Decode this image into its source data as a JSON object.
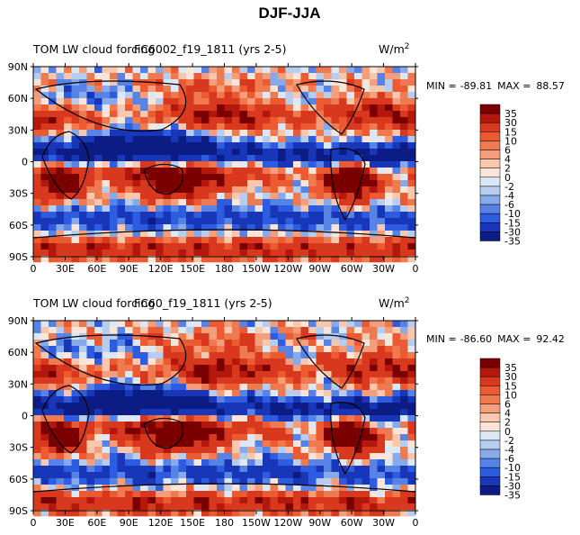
{
  "figure_title": "DJF-JJA",
  "chart_data": [
    {
      "type": "heatmap",
      "left_title": "TOM LW cloud forcing",
      "case_name": "FC6002_f19_1811 (yrs 2-5)",
      "units": "W/m",
      "units_sup": "2",
      "stats": {
        "min_label": "MIN =",
        "min": "-89.81",
        "max_label": "MAX =",
        "max": "88.57"
      },
      "y_ticks": [
        "90N",
        "60N",
        "30N",
        "0",
        "30S",
        "60S",
        "90S"
      ],
      "x_ticks": [
        "0",
        "30E",
        "60E",
        "90E",
        "120E",
        "150E",
        "180",
        "150W",
        "120W",
        "90W",
        "60W",
        "30W",
        "0"
      ],
      "contour_levels": [
        "35",
        "30",
        "15",
        "10",
        "6",
        "4",
        "2",
        "0",
        "-2",
        "-4",
        "-6",
        "-10",
        "-15",
        "-30",
        "-35"
      ],
      "pattern": "a"
    },
    {
      "type": "heatmap",
      "left_title": "TOM LW cloud forcing",
      "case_name": "FC60_f19_1811 (yrs 2-5)",
      "units": "W/m",
      "units_sup": "2",
      "stats": {
        "min_label": "MIN =",
        "min": "-86.60",
        "max_label": "MAX =",
        "max": "92.42"
      },
      "y_ticks": [
        "90N",
        "60N",
        "30N",
        "0",
        "30S",
        "60S",
        "90S"
      ],
      "x_ticks": [
        "0",
        "30E",
        "60E",
        "90E",
        "120E",
        "150E",
        "180",
        "150W",
        "120W",
        "90W",
        "60W",
        "30W",
        "0"
      ],
      "contour_levels": [
        "35",
        "30",
        "15",
        "10",
        "6",
        "4",
        "2",
        "0",
        "-2",
        "-4",
        "-6",
        "-10",
        "-15",
        "-30",
        "-35"
      ],
      "pattern": "b"
    }
  ],
  "colors": {
    "scale": [
      "#7a0000",
      "#b4180c",
      "#d8381e",
      "#ec5a32",
      "#f07a50",
      "#f59e7c",
      "#f9c7ae",
      "#fbe5d8",
      "#dde8f7",
      "#b6cdf0",
      "#86aaea",
      "#5683e5",
      "#2e5ce0",
      "#1836b8",
      "#0b1d84"
    ]
  }
}
